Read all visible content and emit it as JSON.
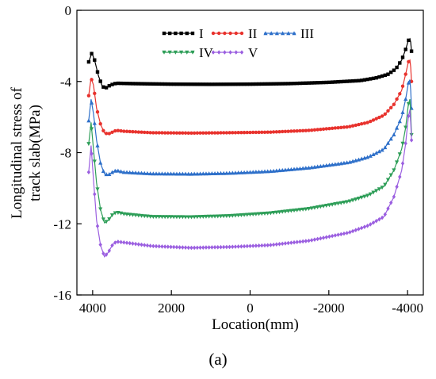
{
  "chart_data": {
    "type": "line",
    "xlabel": "Location(mm)",
    "ylabel_lines": [
      "Longitudinal stress of",
      "track slab(MPa)"
    ],
    "panel_label": "(a)",
    "x_reversed": true,
    "xlim": [
      4400,
      -4400
    ],
    "ylim": [
      -16,
      0
    ],
    "x_ticks": [
      4000,
      2000,
      0,
      -2000,
      -4000
    ],
    "x_tick_labels": [
      "4000",
      "2000",
      "0",
      "-2000",
      "-4000"
    ],
    "y_ticks": [
      0,
      -4,
      -8,
      -12,
      -16
    ],
    "y_tick_labels": [
      "0",
      "-4",
      "-8",
      "-12",
      "-16"
    ],
    "grid": false,
    "legend_position": "top-center",
    "series": [
      {
        "name": "I",
        "color": "#000000",
        "marker": "square",
        "points": [
          [
            4100,
            -2.9
          ],
          [
            4020,
            -2.4
          ],
          [
            3950,
            -2.8
          ],
          [
            3850,
            -3.7
          ],
          [
            3750,
            -4.3
          ],
          [
            3650,
            -4.35
          ],
          [
            3550,
            -4.2
          ],
          [
            3400,
            -4.1
          ],
          [
            3000,
            -4.12
          ],
          [
            2000,
            -4.15
          ],
          [
            1000,
            -4.16
          ],
          [
            0,
            -4.15
          ],
          [
            -1000,
            -4.12
          ],
          [
            -2000,
            -4.05
          ],
          [
            -2800,
            -3.95
          ],
          [
            -3200,
            -3.8
          ],
          [
            -3500,
            -3.6
          ],
          [
            -3700,
            -3.3
          ],
          [
            -3850,
            -2.8
          ],
          [
            -3950,
            -2.2
          ],
          [
            -4020,
            -1.7
          ],
          [
            -4060,
            -1.6
          ],
          [
            -4080,
            -1.8
          ],
          [
            -4100,
            -2.3
          ]
        ]
      },
      {
        "name": "II",
        "color": "#e8322d",
        "marker": "circle",
        "points": [
          [
            4100,
            -4.8
          ],
          [
            4040,
            -3.8
          ],
          [
            3980,
            -4.2
          ],
          [
            3900,
            -5.5
          ],
          [
            3800,
            -6.4
          ],
          [
            3700,
            -6.9
          ],
          [
            3600,
            -6.95
          ],
          [
            3500,
            -6.85
          ],
          [
            3400,
            -6.75
          ],
          [
            3200,
            -6.8
          ],
          [
            2500,
            -6.88
          ],
          [
            1500,
            -6.9
          ],
          [
            500,
            -6.88
          ],
          [
            -500,
            -6.85
          ],
          [
            -1500,
            -6.75
          ],
          [
            -2500,
            -6.55
          ],
          [
            -3000,
            -6.3
          ],
          [
            -3400,
            -5.9
          ],
          [
            -3650,
            -5.3
          ],
          [
            -3850,
            -4.5
          ],
          [
            -3950,
            -3.6
          ],
          [
            -4020,
            -2.9
          ],
          [
            -4060,
            -2.8
          ],
          [
            -4080,
            -3.2
          ],
          [
            -4100,
            -4.0
          ]
        ]
      },
      {
        "name": "III",
        "color": "#2d6fc9",
        "marker": "triangle",
        "points": [
          [
            4100,
            -6.2
          ],
          [
            4040,
            -5.0
          ],
          [
            3980,
            -5.8
          ],
          [
            3900,
            -7.3
          ],
          [
            3800,
            -8.6
          ],
          [
            3700,
            -9.2
          ],
          [
            3600,
            -9.25
          ],
          [
            3500,
            -9.1
          ],
          [
            3400,
            -9.0
          ],
          [
            3200,
            -9.1
          ],
          [
            2500,
            -9.18
          ],
          [
            1500,
            -9.2
          ],
          [
            500,
            -9.15
          ],
          [
            -500,
            -9.05
          ],
          [
            -1500,
            -8.85
          ],
          [
            -2500,
            -8.55
          ],
          [
            -3000,
            -8.25
          ],
          [
            -3400,
            -7.8
          ],
          [
            -3650,
            -7.0
          ],
          [
            -3850,
            -6.0
          ],
          [
            -3950,
            -5.0
          ],
          [
            -4020,
            -4.1
          ],
          [
            -4060,
            -3.9
          ],
          [
            -4080,
            -4.5
          ],
          [
            -4100,
            -5.5
          ]
        ]
      },
      {
        "name": "IV",
        "color": "#2e9e58",
        "marker": "triangle-down",
        "points": [
          [
            4100,
            -7.5
          ],
          [
            4040,
            -6.3
          ],
          [
            3980,
            -7.8
          ],
          [
            3900,
            -9.7
          ],
          [
            3800,
            -11.2
          ],
          [
            3700,
            -11.95
          ],
          [
            3600,
            -11.8
          ],
          [
            3500,
            -11.5
          ],
          [
            3400,
            -11.35
          ],
          [
            3200,
            -11.45
          ],
          [
            2500,
            -11.6
          ],
          [
            1500,
            -11.62
          ],
          [
            500,
            -11.55
          ],
          [
            -500,
            -11.4
          ],
          [
            -1500,
            -11.15
          ],
          [
            -2500,
            -10.75
          ],
          [
            -3000,
            -10.4
          ],
          [
            -3400,
            -9.9
          ],
          [
            -3650,
            -9.0
          ],
          [
            -3850,
            -7.8
          ],
          [
            -3950,
            -6.6
          ],
          [
            -4020,
            -5.3
          ],
          [
            -4060,
            -5.0
          ],
          [
            -4080,
            -5.8
          ],
          [
            -4100,
            -7.0
          ]
        ]
      },
      {
        "name": "V",
        "color": "#9b5fe0",
        "marker": "diamond",
        "points": [
          [
            4100,
            -9.1
          ],
          [
            4040,
            -7.6
          ],
          [
            3980,
            -9.5
          ],
          [
            3900,
            -11.8
          ],
          [
            3800,
            -13.2
          ],
          [
            3700,
            -13.85
          ],
          [
            3600,
            -13.6
          ],
          [
            3500,
            -13.2
          ],
          [
            3400,
            -13.0
          ],
          [
            3200,
            -13.05
          ],
          [
            2500,
            -13.25
          ],
          [
            1500,
            -13.35
          ],
          [
            500,
            -13.3
          ],
          [
            -500,
            -13.2
          ],
          [
            -1500,
            -12.95
          ],
          [
            -2500,
            -12.5
          ],
          [
            -3000,
            -12.1
          ],
          [
            -3400,
            -11.6
          ],
          [
            -3650,
            -10.5
          ],
          [
            -3850,
            -9.0
          ],
          [
            -3950,
            -7.5
          ],
          [
            -4020,
            -6.0
          ],
          [
            -4060,
            -5.6
          ],
          [
            -4080,
            -6.3
          ],
          [
            -4100,
            -7.3
          ]
        ]
      }
    ]
  }
}
